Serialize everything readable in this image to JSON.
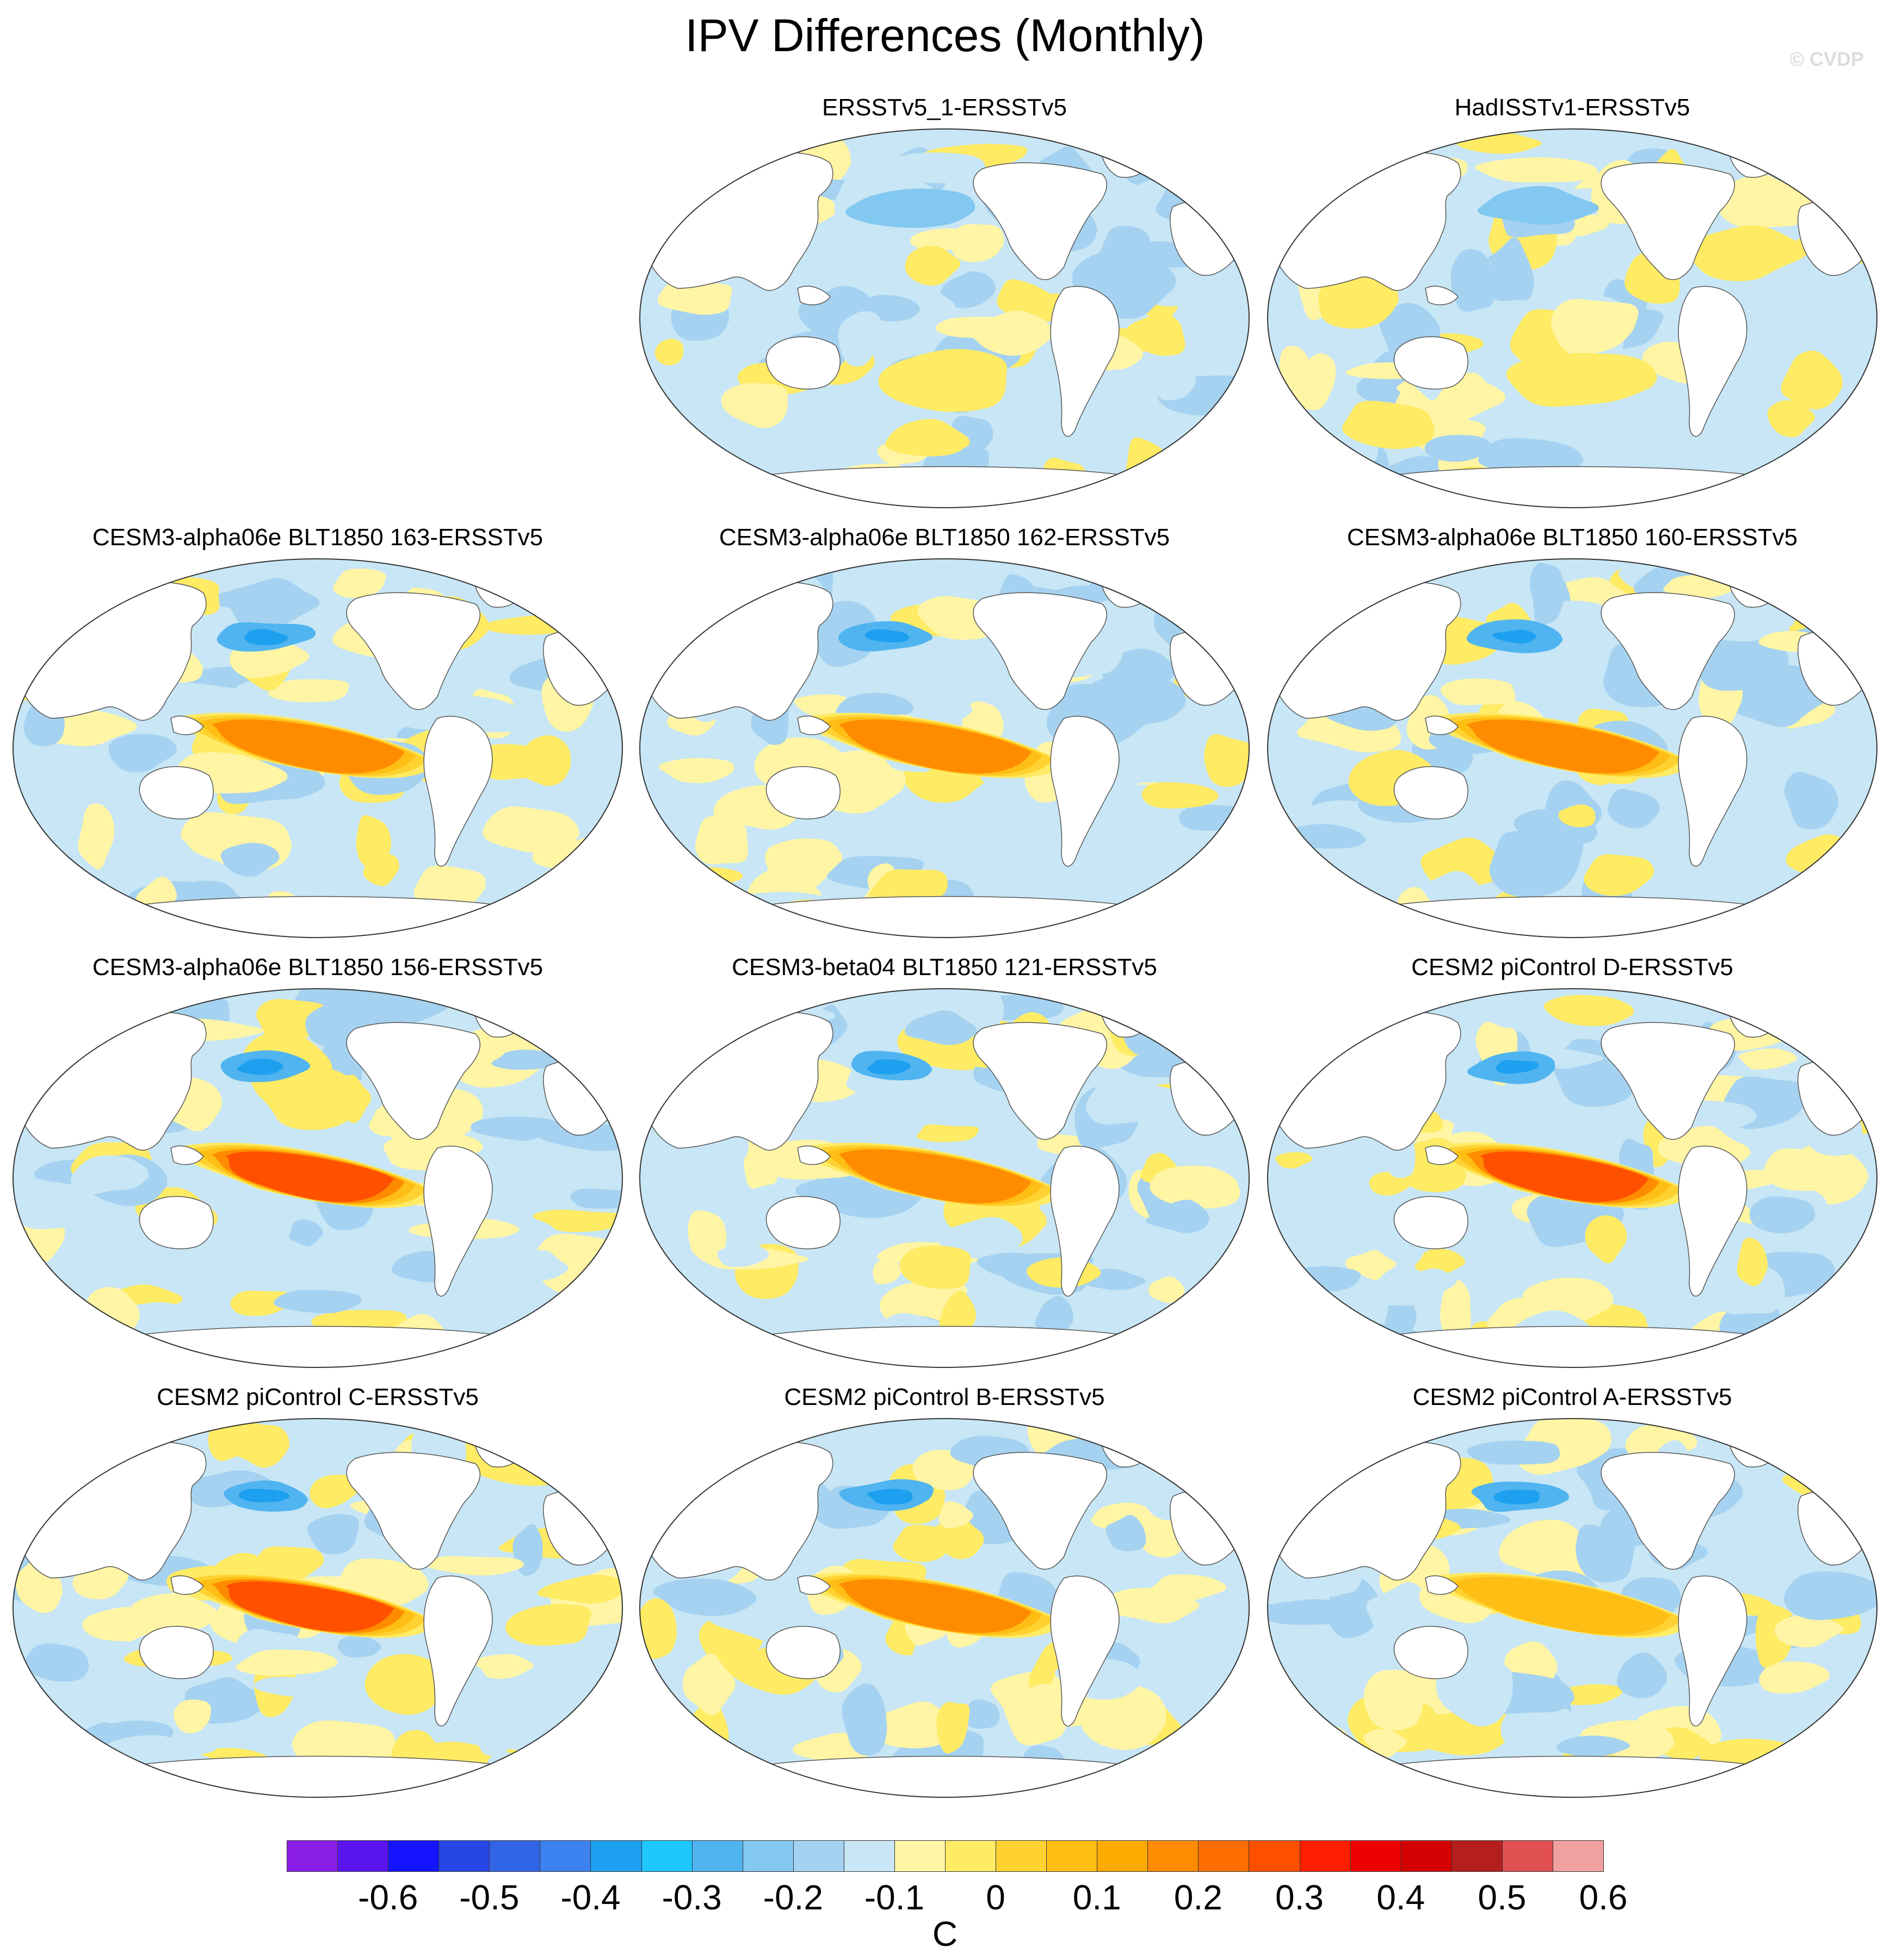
{
  "title": "IPV Differences (Monthly)",
  "credit": "© CVDP",
  "panels": [
    {
      "title": "ERSSTv5_1-ERSSTv5",
      "slot": 1,
      "seed": 11,
      "pattern": "obs-a"
    },
    {
      "title": "HadISSTv1-ERSSTv5",
      "slot": 2,
      "seed": 23,
      "pattern": "obs-b"
    },
    {
      "title": "CESM3-alpha06e BLT1850 163-ERSSTv5",
      "slot": 3,
      "seed": 37,
      "pattern": "model-mid"
    },
    {
      "title": "CESM3-alpha06e BLT1850 162-ERSSTv5",
      "slot": 4,
      "seed": 41,
      "pattern": "model-mid"
    },
    {
      "title": "CESM3-alpha06e BLT1850 160-ERSSTv5",
      "slot": 5,
      "seed": 53,
      "pattern": "model-mid"
    },
    {
      "title": "CESM3-alpha06e BLT1850 156-ERSSTv5",
      "slot": 6,
      "seed": 61,
      "pattern": "model-strong"
    },
    {
      "title": "CESM3-beta04 BLT1850 121-ERSSTv5",
      "slot": 7,
      "seed": 71,
      "pattern": "model-mid"
    },
    {
      "title": "CESM2 piControl D-ERSSTv5",
      "slot": 8,
      "seed": 83,
      "pattern": "model-strong"
    },
    {
      "title": "CESM2 piControl C-ERSSTv5",
      "slot": 9,
      "seed": 97,
      "pattern": "model-strong"
    },
    {
      "title": "CESM2 piControl B-ERSSTv5",
      "slot": 10,
      "seed": 103,
      "pattern": "model-mid"
    },
    {
      "title": "CESM2 piControl A-ERSSTv5",
      "slot": 11,
      "seed": 113,
      "pattern": "model-weak"
    }
  ],
  "colorbar": {
    "colors": [
      "#8a1ee6",
      "#5a14f0",
      "#1414ff",
      "#2846e6",
      "#3264e6",
      "#3c82f0",
      "#1ea0f0",
      "#1ec8ff",
      "#50b4f0",
      "#82c8f0",
      "#a5d2f0",
      "#c8e6f5",
      "#fff5a5",
      "#ffeb64",
      "#ffd232",
      "#ffbe14",
      "#ffaa00",
      "#ff8c00",
      "#ff6e00",
      "#ff5000",
      "#ff1e00",
      "#ee0000",
      "#d20000",
      "#b41e1e",
      "#e05050",
      "#f0a0a0"
    ],
    "labels": [
      "-0.6",
      "-0.5",
      "-0.4",
      "-0.3",
      "-0.2",
      "-0.1",
      "0",
      "0.1",
      "0.2",
      "0.3",
      "0.4",
      "0.5",
      "0.6"
    ],
    "units": "C"
  }
}
